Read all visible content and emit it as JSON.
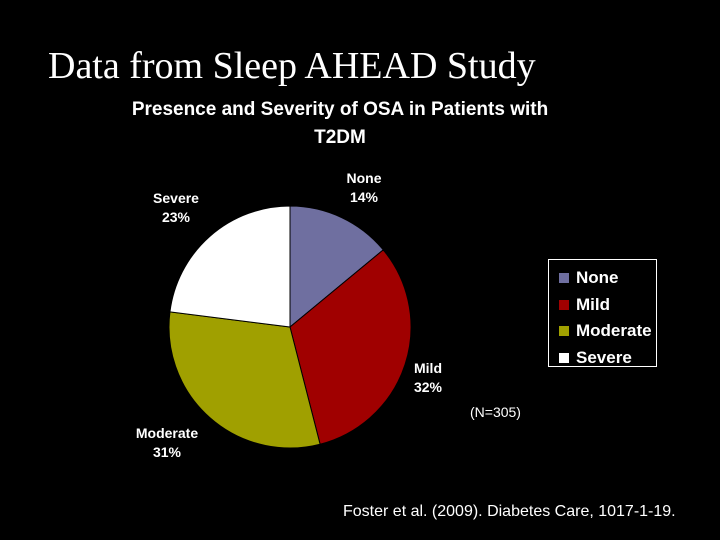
{
  "slide": {
    "title": "Data from Sleep AHEAD Study",
    "n_note": "(N=305)",
    "citation": "Foster et al. (2009). Diabetes Care, 1017-1-19."
  },
  "chart_data": {
    "type": "pie",
    "title_lines": [
      "Presence and Severity of OSA in Patients with",
      "T2DM"
    ],
    "legend_position": "right",
    "slices": [
      {
        "name": "None",
        "label": "None",
        "value": 14,
        "value_label": "14%",
        "color": "#6F6FA0"
      },
      {
        "name": "Mild",
        "label": "Mild",
        "value": 32,
        "value_label": "32%",
        "color": "#A00000"
      },
      {
        "name": "Moderate",
        "label": "Moderate",
        "value": 31,
        "value_label": "31%",
        "color": "#A0A000"
      },
      {
        "name": "Severe",
        "label": "Severe",
        "value": 23,
        "value_label": "23%",
        "color": "#FFFFFF"
      }
    ]
  }
}
